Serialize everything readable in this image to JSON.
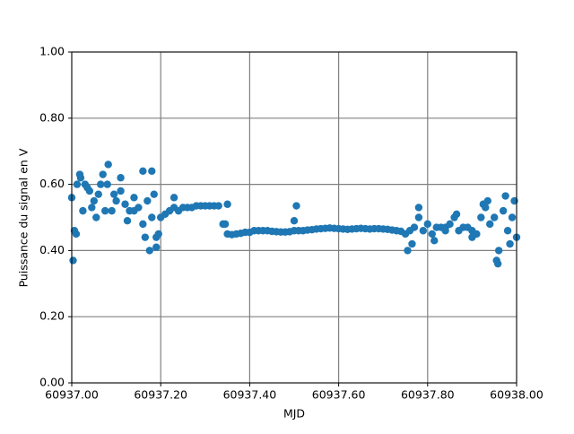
{
  "chart_data": {
    "type": "scatter",
    "x_label": "MJD",
    "y_label": "Puissance du signal en V",
    "color": "#1f77b4",
    "grid": true,
    "xlim": [
      60937.0,
      60938.0
    ],
    "xticks": [
      {
        "value": 60937.0,
        "label": "60937.00"
      },
      {
        "value": 60937.2,
        "label": "60937.20"
      },
      {
        "value": 60937.4,
        "label": "60937.40"
      },
      {
        "value": 60937.6,
        "label": "60937.60"
      },
      {
        "value": 60937.8,
        "label": "60937.80"
      },
      {
        "value": 60938.0,
        "label": "60938.00"
      }
    ],
    "ylim": [
      0,
      1
    ],
    "yticks": [
      {
        "value": 0,
        "label": "0.00"
      },
      {
        "value": 0.2,
        "label": "0.20"
      },
      {
        "value": 0.4,
        "label": "0.40"
      },
      {
        "value": 0.6,
        "label": "0.60"
      },
      {
        "value": 0.8,
        "label": "0.80"
      },
      {
        "value": 1,
        "label": "1.00"
      }
    ],
    "x": [
      60937.0,
      60937.01,
      60937.02,
      60937.03,
      60937.04,
      60937.05,
      60937.06,
      60937.07,
      60937.08,
      60937.09,
      60937.1,
      60937.11,
      60937.12,
      60937.13,
      60937.14,
      60937.15,
      60937.16,
      60937.17,
      60937.18,
      60937.19,
      60937.2,
      60937.21,
      60937.22,
      60937.23,
      60937.24,
      60937.25,
      60937.26,
      60937.27,
      60937.28,
      60937.29,
      60937.3,
      60937.31,
      60937.32,
      60937.33,
      60937.34,
      60937.35,
      60937.36,
      60937.37,
      60937.38,
      60937.39,
      60937.4,
      60937.41,
      60937.42,
      60937.43,
      60937.44,
      60937.45,
      60937.46,
      60937.47,
      60937.48,
      60937.49,
      60937.5,
      60937.51,
      60937.52,
      60937.53,
      60937.54,
      60937.55,
      60937.56,
      60937.57,
      60937.58,
      60937.59,
      60937.6,
      60937.61,
      60937.62,
      60937.63,
      60937.64,
      60937.65,
      60937.66,
      60937.67,
      60937.68,
      60937.69,
      60937.7,
      60937.71,
      60937.72,
      60937.73,
      60937.74,
      60937.75,
      60937.76,
      60937.77,
      60937.78,
      60937.79,
      60937.8,
      60937.81,
      60937.82,
      60937.83,
      60937.84,
      60937.85,
      60937.86,
      60937.87,
      60937.88,
      60937.89,
      60937.9,
      60937.91,
      60937.92,
      60937.93,
      60937.94,
      60937.95,
      60937.96,
      60937.97,
      60937.98,
      60937.99,
      60938.0,
      60937.003,
      60937.006,
      60937.012,
      60937.018,
      60937.025,
      60937.035,
      60937.045,
      60937.055,
      60937.065,
      60937.075,
      60937.082,
      60937.095,
      60937.11,
      60937.125,
      60937.14,
      60937.16,
      60937.165,
      60937.175,
      60937.18,
      60937.185,
      60937.19,
      60937.195,
      60937.23,
      60937.345,
      60937.35,
      60937.5,
      60937.505,
      60937.755,
      60937.765,
      60937.78,
      60937.815,
      60937.84,
      60937.865,
      60937.9,
      60937.925,
      60937.935,
      60937.955,
      60937.958,
      60937.975,
      60937.985,
      60937.995
    ],
    "values": [
      0.56,
      0.45,
      0.62,
      0.6,
      0.58,
      0.55,
      0.57,
      0.63,
      0.6,
      0.52,
      0.55,
      0.58,
      0.54,
      0.52,
      0.56,
      0.53,
      0.48,
      0.55,
      0.5,
      0.44,
      0.5,
      0.51,
      0.52,
      0.53,
      0.52,
      0.53,
      0.53,
      0.53,
      0.535,
      0.535,
      0.535,
      0.535,
      0.535,
      0.535,
      0.48,
      0.45,
      0.448,
      0.45,
      0.452,
      0.455,
      0.455,
      0.46,
      0.46,
      0.46,
      0.46,
      0.458,
      0.457,
      0.456,
      0.456,
      0.457,
      0.46,
      0.46,
      0.46,
      0.462,
      0.463,
      0.465,
      0.466,
      0.467,
      0.468,
      0.467,
      0.466,
      0.465,
      0.464,
      0.465,
      0.466,
      0.467,
      0.466,
      0.465,
      0.466,
      0.466,
      0.465,
      0.464,
      0.462,
      0.46,
      0.458,
      0.45,
      0.46,
      0.47,
      0.5,
      0.46,
      0.48,
      0.45,
      0.47,
      0.47,
      0.46,
      0.48,
      0.5,
      0.46,
      0.47,
      0.47,
      0.46,
      0.45,
      0.5,
      0.53,
      0.48,
      0.5,
      0.4,
      0.52,
      0.46,
      0.5,
      0.44,
      0.37,
      0.46,
      0.6,
      0.63,
      0.52,
      0.59,
      0.53,
      0.5,
      0.6,
      0.52,
      0.66,
      0.57,
      0.62,
      0.49,
      0.52,
      0.64,
      0.44,
      0.4,
      0.64,
      0.57,
      0.41,
      0.45,
      0.56,
      0.48,
      0.54,
      0.49,
      0.535,
      0.4,
      0.42,
      0.53,
      0.43,
      0.47,
      0.51,
      0.44,
      0.54,
      0.55,
      0.37,
      0.36,
      0.565,
      0.42,
      0.55
    ]
  }
}
